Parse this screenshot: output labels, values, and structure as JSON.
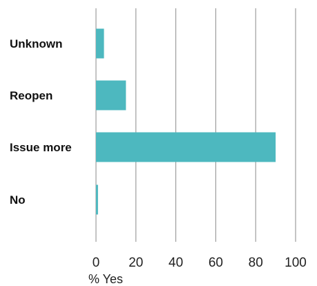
{
  "chart_data": {
    "type": "bar",
    "orientation": "horizontal",
    "categories": [
      "Unknown",
      "Reopen",
      "Issue more",
      "No"
    ],
    "values": [
      4,
      15,
      90,
      1
    ],
    "xlabel": "% Yes",
    "ylabel": "",
    "xlim": [
      0,
      100
    ],
    "xticks": [
      0,
      20,
      40,
      60,
      80,
      100
    ],
    "grid": "vertical",
    "bar_color": "#4db8bf"
  }
}
